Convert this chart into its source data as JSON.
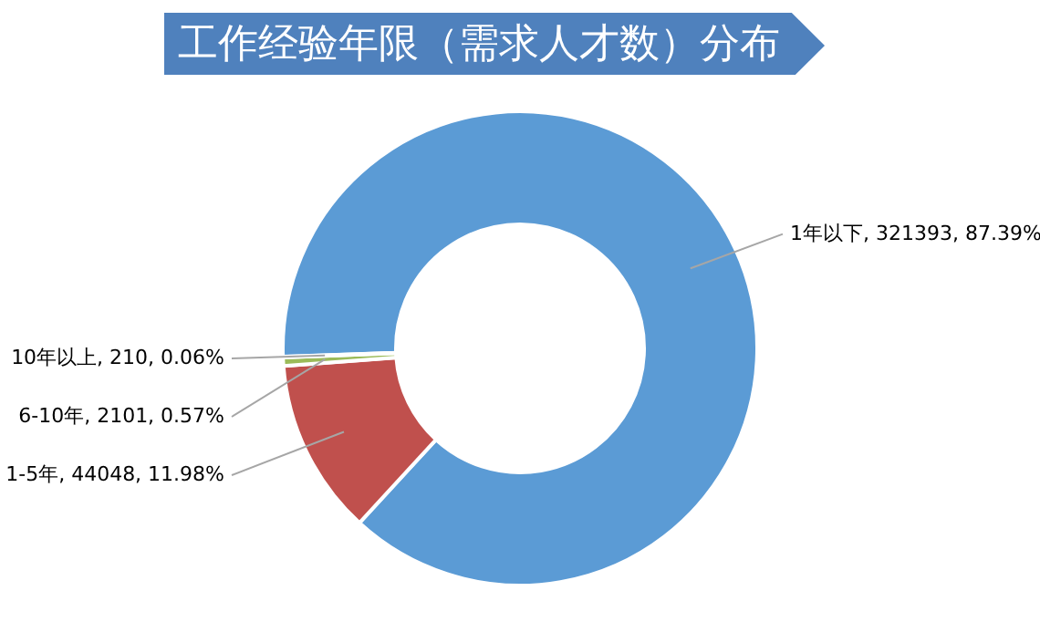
{
  "chart_data": {
    "type": "donut",
    "title": "工作经验年限（需求人才数）分布",
    "categories": [
      "1年以下",
      "1-5年",
      "6-10年",
      "10年以上"
    ],
    "values": [
      321393,
      44048,
      2101,
      210
    ],
    "value_labels": [
      "321393, 87.39%",
      "44048, 11.98%",
      "2101, 0.57%",
      "210, 0.06%"
    ],
    "colors": [
      "#5b9bd5",
      "#c0504d",
      "#9bbb59",
      "#8064a2"
    ],
    "legend": false
  }
}
